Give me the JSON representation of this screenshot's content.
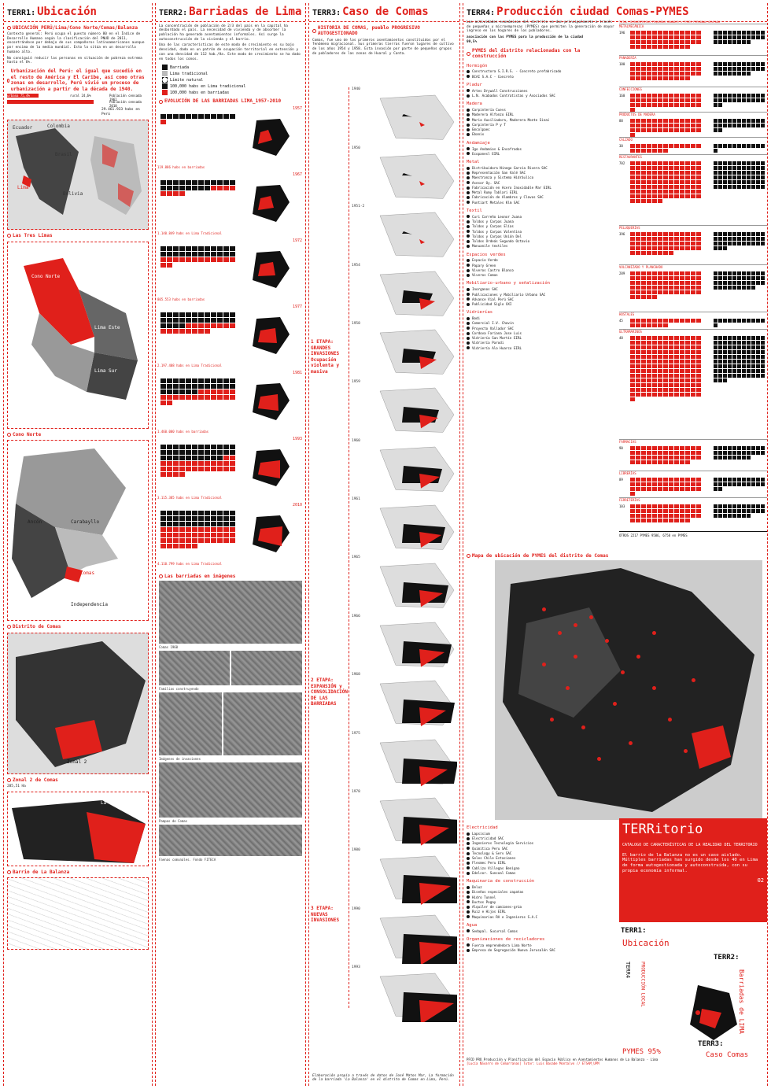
{
  "colors": {
    "accent": "#e0201b",
    "dark": "#111111",
    "gray": "#888888"
  },
  "c1": {
    "key": "TERR1:",
    "title": "Ubicación",
    "s1": "UBICACIÓN_PERÚ/Lima/Cono Norte/Comas/Balanza",
    "p1": "Contexto general: Perú ocupa el puesto número 80 en el Índice de Desarrollo Humano según la clasificación del PNUD de 2011, encontrándose por debajo de sus compañeros latinoamericanos aunque por encima de la media mundial. Esto lo sitúa en un desarrollo humano alto.",
    "p2": "No consiguió reducir las personas en situación de pobreza extrema hasta el 6%.",
    "s2": "Urbanización del Perú: el igual que sucedió en el resto de América y El Caribe, así como otras zonas en desarrollo, Perú vivió un proceso de urbanización a partir de la década de 1940.",
    "stat1": "urbana 75,4%",
    "stat2": "rural 24,6%",
    "stat3": "Población censada 1961",
    "stat4": "Población censada 2010",
    "stat5": "29.461.933 habs en Perú",
    "countries": [
      "Ecuador",
      "Colombia",
      "Brasil",
      "Bolivia",
      "Lima"
    ],
    "s3": "Las Tres Limas",
    "m1": [
      "Cono Norte",
      "Lima Este",
      "Lima Sur"
    ],
    "s4": "Cono Norte",
    "m2": [
      "Ancón",
      "Carabayllo",
      "Comas",
      "Independencia"
    ],
    "s5": "Distrito de Comas",
    "m3": "Zonal 2",
    "s6": "Zonal 2 de Comas",
    "area": "285,51 Ha",
    "m4": "La Balanza",
    "s7": "Barrio de La Balanza"
  },
  "c2": {
    "key": "TERR2:",
    "title": "Barriadas de Lima",
    "s1": "EVOLUCIÓN DE LAS BARRIADAS DE LIMA",
    "p1": "La concentración de población de 2/3 del país en la capital ha desbordado el país. La necesidad de vivienda y de absorber la población ha generado asentamientos informales. Así surge la autoconstrucción de la vivienda y el barrio.",
    "p2": "Una de las características de este modo de crecimiento es su bajo densidad, dado en un patrón de ocupación territorial en extensión y con una densidad de 112 hab./Ha. Este modo de crecimiento se ha dado en todos los conos.",
    "legend": [
      "Barriada",
      "Lima tradicional",
      "Límite natural"
    ],
    "leg2": [
      "100,000 habs en Lima tradicional",
      "100,000 habs en barriadas"
    ],
    "s2": "EVOLUCIÓN DE LAS BARRIADAS LIMA_1957-2010",
    "years": [
      "1957",
      "1967",
      "1972",
      "1977",
      "1981",
      "1993",
      "2010"
    ],
    "cap": [
      "119.886 habs en barriadas",
      "1.140.849 habs en Lima Tradicional",
      "805.553 habs en barriadas",
      "2.197.408 habs en Lima Tradicional",
      "1.460.000 habs en barriadas",
      "3.115.385 habs en Lima Tradicional",
      "4.110.799 habs en Lima Tradicional",
      "6.707.543 habs en las Nuevas Limas"
    ],
    "s3": "Las barriadas en imágenes",
    "caps": [
      "Comas 1960",
      "Familias construyendo",
      "Imágenes de invasiones",
      "Pampas de Comas",
      "Faenas comunales. Fondo FITECA"
    ]
  },
  "c3": {
    "key": "TERR3:",
    "title": "Caso de Comas",
    "s1": "HISTORIA DE COMAS, pueblo PROGRESIVO AUTOGESTIONADO",
    "p1": "Comas, fue uno de los primeros asentamientos constituidos por el fenómeno migracional. Sus primeras tierras fueron lugares de cultivo de los años 1954 y 1958. Esta invasión por parte de pequeños grupos de pobladores de las zonas de Huaral y Canta.",
    "years": [
      "1940",
      "1950",
      "1951-2",
      "1954",
      "1958",
      "1959",
      "1960",
      "1961",
      "1965",
      "1966",
      "1968",
      "1975",
      "1978",
      "1980",
      "1990",
      "1993"
    ],
    "etapa1": "1 ETAPA: GRANDES INVASIONES Ocupación violenta y masiva",
    "etapa2": "2 ETAPA: EXPANSIÓN y CONSOLIDACIÓN DE LAS BARRIADAS",
    "etapa3": "3 ETAPA: NUEVAS INVASIONES",
    "labels": [
      "Canta",
      "Cerros",
      "Lima",
      "Pampa de Comas",
      "Pueblo",
      "Urbanizaciones regulares"
    ],
    "foot": "Elaboración propia a través de datos de José Matos Mar, La formación de la barriada 'La Balanza' en el distrito de Comas en Lima, Perú."
  },
  "c4": {
    "key": "TERR4:",
    "title": "Producción ciudad Comas-PYMES",
    "p1": "Las actividades económicas del distrito se dan principalmente a través de pequeñas y microempresas (PYMES) que permiten la generación de mayor ingreso en los hogares de los pobladores.",
    "highlight": "asociación con las PYMES para la producción de la ciudad",
    "pct": "99,5%",
    "s1": "PYMES del distrito relacionadas con la construcción",
    "cats": [
      {
        "name": "Hormigón",
        "items": [
          "Constructora S.I.R.S. - Concreto prefabricado",
          "BCAI S.A.C - Concreto"
        ]
      },
      {
        "name": "Pladur",
        "items": [
          "Artes Drywall Construcciones",
          "L.N. Acabados Contratistas y Asociados SAC"
        ]
      },
      {
        "name": "Madera",
        "items": [
          "Carpintería Cuevs",
          "Maderera Alfonzo EIRL",
          "Maria Auxiliadora, Maderera Monte Sinaí",
          "Carpintería P y T",
          "Emcolpaec",
          "Ebanix"
        ]
      },
      {
        "name": "Andamiaje",
        "items": [
          "Igo Andamios & Encofrados",
          "Ecopanesl EIRL"
        ]
      },
      {
        "name": "Metal",
        "items": [
          "Distribuidora Ninego García Rivera SAC",
          "Representación San Valé SAC",
          "Maestranza y Sistema Hidráulico",
          "Asesor Oy. SAC",
          "Fabricación en Acero Inoxidable Mar EIRL",
          "Metal Rumy Tablari EIRL",
          "Fabricación de Alambres y Clavos SAC",
          "Puntiart Metales Klm SAC"
        ]
      },
      {
        "name": "Textil",
        "items": [
          "Curi Carreño Leonor Juana",
          "Toldos y Carpas Juana",
          "Toldos y Carpas Elías",
          "Toldos y Carpas Valentina",
          "Toldos y Carpas Unión Del",
          "Toldos Ordeás Segundo Octavio",
          "Manuanile textiles"
        ]
      },
      {
        "name": "Espacios verdes",
        "items": [
          "Espacio Verde",
          "Papary Green",
          "Viveros Castro Blanco",
          "Viveros Comas"
        ]
      },
      {
        "name": "Mobiliario-urbano y señalización",
        "items": [
          "Inorganos SAC",
          "Publicaciones y Mobiliario Urbano SAC",
          "Advance Vial Perú SAC",
          "Publicidad Siglo XXI"
        ]
      },
      {
        "name": "Vidrierías",
        "items": [
          "Bodi",
          "Comercial I.V. Chavin",
          "Proyecto Vallador SAC",
          "Cordova Fariana Jose Luis",
          "Vidriería San Martín EIRL",
          "Vidriería Parodi",
          "Vidriería Alo Huarco EIRL"
        ]
      }
    ],
    "cats2": [
      {
        "name": "Electricidad",
        "items": [
          "Lapsisium",
          "Electricidad SAC",
          "Ingenieros Tecnología Servicios",
          "Quimitica Peru SAC",
          "Tecnology & Serv SAC",
          "Seles Chile Estaciones",
          "Flexmec Peru EIRL",
          "Cablizo Villegas Benigno",
          "Edelcor. Suncoal Comas"
        ]
      },
      {
        "name": "Maquinaria de construcción",
        "items": [
          "Deluz",
          "Diseños especiales zapatas",
          "Hidro Tunnel",
          "Ductos Pogay",
          "Alquiler de camiones-grúa",
          "Ruiz e Hijos EIRL",
          "Maquinarias RA e Ingenieros S.A.C"
        ]
      },
      {
        "name": "Agua",
        "items": [
          "Sedapal. Sucursal Comas"
        ]
      },
      {
        "name": "Organizaciones de recicladores",
        "items": [
          "Fuerza emprendedora Lima Norte",
          "Empresa de Segregación Nueva Jerusalén SAC"
        ]
      }
    ],
    "prod_head": [
      "TOTAL",
      "MICROEMPRESAS",
      "PEQUEÑAS",
      "GRANDES",
      "% PYMES",
      "PERSONAL OCUPADO"
    ],
    "prod": [
      {
        "name": "METALMECÁNICA",
        "total": "196"
      },
      {
        "name": "PANADERÍA",
        "total": "180"
      },
      {
        "name": "CONFECCIONES",
        "total": "160"
      },
      {
        "name": "PRODUCTOS DE MADERA",
        "total": "88"
      },
      {
        "name": "CALZADO",
        "total": "38"
      },
      {
        "name": "RESTAURANTES",
        "total": "702"
      },
      {
        "name": "PELUQUERÍAS",
        "total": "396"
      },
      {
        "name": "VULCANIZADO Y PLANCHADO",
        "total": "289"
      },
      {
        "name": "HOSTALES",
        "total": "45"
      },
      {
        "name": "ULTRAMARINOS",
        "total": "48"
      },
      {
        "name": "FARMACIAS",
        "total": "90"
      },
      {
        "name": "LIBRERÍAS",
        "total": "89"
      },
      {
        "name": "FERRETERÍAS",
        "total": "103"
      }
    ],
    "prod_total": "OTROS 2217 PYMES 9586, 6758 en PYMES",
    "s2": "Mapa de ubicación de PYMES del distrito de Comas",
    "tb": {
      "title": "TERRitorio",
      "sub": "CATALOGO DE CARACTERÍSTICAS DE LA REALIDAD DEL TERRITORIO",
      "p": "El barrio de la Balanza no es un caso aislado. Múltiples barriadas han surgido desde los 40 en Lima de forma autogestionada y autoconstruida, con su propia economía informal.",
      "num": "02"
    },
    "idx": [
      "TERR1:",
      "Ubicación",
      "TERR2:",
      "Barriadas de LIMA",
      "TERR3:",
      "Caso Comas",
      "TERR4",
      "PRODUCCIÓN LOCAL",
      "PYMES 95%"
    ],
    "foot": "PFCD PRO_Producción y Planificación del Espacio Público en Asentamientos Humanos de La Balanza - Lima",
    "tutor": "[Lucía Navarro de Comarranas] Tutor: Luis Basabe Montalvo // ETSAM_UPM"
  }
}
